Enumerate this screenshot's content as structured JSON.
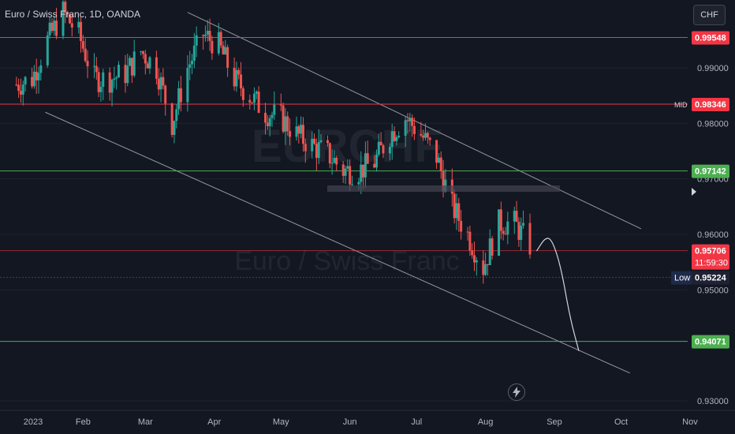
{
  "header": {
    "title": "Euro / Swiss Franc, 1D, OANDA",
    "currency_button": "CHF"
  },
  "colors": {
    "background": "#131722",
    "up": "#26a69a",
    "down": "#ef5350",
    "red_line": "#f23645",
    "green_line": "#4caf50",
    "channel": "#b2b5be"
  },
  "chart_data": {
    "type": "candlestick",
    "title": "Euro / Swiss Franc, 1D, OANDA",
    "symbol": "EURCHF",
    "interval": "1D",
    "source": "OANDA",
    "ylim": [
      0.93,
      1.0
    ],
    "y_ticks": [
      "0.99000",
      "0.98000",
      "0.97000",
      "0.96000",
      "0.95000",
      "0.93000"
    ],
    "x_ticks": [
      "2023",
      "Feb",
      "Mar",
      "Apr",
      "May",
      "Jun",
      "Jul",
      "Aug",
      "Sep",
      "Oct",
      "Nov"
    ],
    "close_path": [
      [
        "2023-01-02",
        0.987
      ],
      [
        "2023-01-09",
        0.988
      ],
      [
        "2023-01-16",
        0.995
      ],
      [
        "2023-01-23",
        1.0
      ],
      [
        "2023-01-30",
        0.996
      ],
      [
        "2023-02-06",
        0.988
      ],
      [
        "2023-02-13",
        0.988
      ],
      [
        "2023-02-20",
        0.989
      ],
      [
        "2023-02-27",
        0.993
      ],
      [
        "2023-03-06",
        0.99
      ],
      [
        "2023-03-13",
        0.98
      ],
      [
        "2023-03-20",
        0.99
      ],
      [
        "2023-03-27",
        0.996
      ],
      [
        "2023-04-03",
        0.994
      ],
      [
        "2023-04-10",
        0.988
      ],
      [
        "2023-04-17",
        0.985
      ],
      [
        "2023-04-24",
        0.982
      ],
      [
        "2023-05-01",
        0.981
      ],
      [
        "2023-05-08",
        0.978
      ],
      [
        "2023-05-15",
        0.976
      ],
      [
        "2023-05-22",
        0.9745
      ],
      [
        "2023-05-29",
        0.9715
      ],
      [
        "2023-06-05",
        0.9715
      ],
      [
        "2023-06-12",
        0.973
      ],
      [
        "2023-06-19",
        0.978
      ],
      [
        "2023-06-26",
        0.981
      ],
      [
        "2023-07-03",
        0.978
      ],
      [
        "2023-07-10",
        0.974
      ],
      [
        "2023-07-17",
        0.965
      ],
      [
        "2023-07-24",
        0.96
      ],
      [
        "2023-07-31",
        0.954
      ],
      [
        "2023-08-07",
        0.962
      ],
      [
        "2023-08-14",
        0.962
      ],
      [
        "2023-08-21",
        0.958
      ]
    ],
    "horizontal_levels": [
      {
        "price": 0.99548,
        "label": "0.99548",
        "color": "red"
      },
      {
        "price": 0.98346,
        "label": "0.98346",
        "color": "red",
        "tag": "MID"
      },
      {
        "price": 0.97142,
        "label": "0.97142",
        "color": "green"
      },
      {
        "price": 0.95706,
        "label": "0.95706",
        "color": "red",
        "countdown": "11:59:30"
      },
      {
        "price": 0.95224,
        "label": "0.95224",
        "color": "dark",
        "tag": "Low"
      },
      {
        "price": 0.94071,
        "label": "0.94071",
        "color": "green"
      }
    ],
    "channel": {
      "upper": [
        [
          "2023-03-20",
          1.0
        ],
        [
          "2023-10-10",
          0.961
        ]
      ],
      "lower": [
        [
          "2023-01-15",
          0.982
        ],
        [
          "2023-10-05",
          0.935
        ]
      ]
    },
    "projection": [
      [
        "2023-08-24",
        0.957
      ],
      [
        "2023-08-28",
        0.9595
      ],
      [
        "2023-08-31",
        0.959
      ],
      [
        "2023-09-04",
        0.954
      ],
      [
        "2023-09-08",
        0.945
      ],
      [
        "2023-09-12",
        0.939
      ]
    ]
  }
}
